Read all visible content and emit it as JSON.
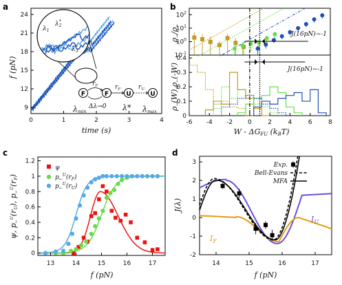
{
  "panel_labels": [
    "a",
    "b",
    "c",
    "d"
  ],
  "colors": {
    "blue_dark": "#1f4fb5",
    "blue_light": "#56a8e8",
    "green": "#66dd44",
    "olive": "#c09a22",
    "red": "#ee1111",
    "purple": "#6a4fe0",
    "orange": "#e89a10",
    "black": "#000000"
  },
  "panel_a": {
    "ylabel": "f (pN)",
    "xlabel": "time (s)",
    "inset_labels": {
      "l1": "λ",
      "l1s": "1",
      "l2": "λ",
      "l2s": "2",
      "l2sup": "*",
      "l3": "λ",
      "l3s": "3",
      "l3sup": "*"
    },
    "scheme": {
      "F": "F",
      "U": "U",
      "rF": "r",
      "rF_sub": "F",
      "rF2": "r",
      "rF2_sub": "F",
      "rU": "r",
      "rU_sub": "U",
      "delta": "Δλ→0",
      "lmin": "λ",
      "lmin_sub": "min",
      "lstar": "λ*",
      "lmax": "λ",
      "lmax_sub": "max"
    }
  },
  "panel_b": {
    "ylabel_top_parts": [
      "ρ",
      "→",
      "/ρ",
      "←"
    ],
    "ylabel_bot_parts": [
      "ρ",
      "→",
      "(W),ρ",
      "←",
      "(-W)"
    ],
    "xlabel": "W - ΔG",
    "xlabel_sub": "FU",
    "xlabel_unit": " (k",
    "xlabel_unit_sub": "B",
    "xlabel_unit_end": "T)",
    "ann_top": "J(16pN)~-1",
    "ann_bot": "J(16pN)~-1"
  },
  "panel_c": {
    "ylabel_parts": {
      "psi": "ψ",
      "p1": ", p",
      "p1_sub": "←",
      "p1_sup": "U",
      "r1": "(r",
      "r1_sub": "U",
      "r1_end": "), p",
      "p2_sub": "←",
      "p2_sup": "U",
      "r2": "(r",
      "r2_sub": "F",
      "r2_end": ")"
    },
    "xlabel": "f (pN)",
    "legend": [
      {
        "sym": "ψ",
        "sub": "",
        "sup": "",
        "arg": "",
        "arg_sub": ""
      },
      {
        "sym": "p",
        "sub": "←",
        "sup": "U",
        "arg": "(r",
        "arg_sub": "F"
      },
      {
        "sym": "p",
        "sub": "←",
        "sup": "U",
        "arg": "(r",
        "arg_sub": "U"
      }
    ]
  },
  "panel_d": {
    "ylabel": "J(λ)",
    "xlabel": "f (pN)",
    "legend": [
      "Exp.",
      "Bell-Evans",
      "MFA"
    ],
    "label_IU": "I",
    "label_IU_sub": "U",
    "label_IF": "I",
    "label_IF_sub": "F"
  },
  "chart_data": [
    {
      "id": "a",
      "type": "line",
      "title": "",
      "xlabel": "time (s)",
      "ylabel": "f (pN)",
      "xlim": [
        0,
        4
      ],
      "ylim": [
        8,
        25
      ],
      "xticks": [
        0,
        1,
        2,
        3,
        4
      ],
      "yticks": [
        9,
        12,
        15,
        18,
        21,
        24
      ],
      "series": [
        {
          "color": "blue_light",
          "t_start": 0.0,
          "t_end": 2.5,
          "f_start": 8.6,
          "f_end": 24.6,
          "rips": [
            [
              1.55,
              -0.9
            ],
            [
              1.72,
              -0.8
            ]
          ]
        },
        {
          "color": "blue_light",
          "t_start": 0.0,
          "t_end": 2.4,
          "f_start": 8.6,
          "f_end": 24.6,
          "rips": [
            [
              1.5,
              -1.0
            ]
          ]
        },
        {
          "color": "blue_dark",
          "t_start": 0.05,
          "t_end": 2.55,
          "f_start": 8.6,
          "f_end": 24.6,
          "rips": [
            [
              1.6,
              -0.9
            ],
            [
              1.8,
              -1.0
            ]
          ]
        },
        {
          "color": "blue_dark",
          "t_start": 0.0,
          "t_end": 2.45,
          "f_start": 8.6,
          "f_end": 24.6,
          "rips": [
            [
              1.52,
              -0.8
            ],
            [
              1.85,
              -0.9
            ]
          ]
        }
      ]
    },
    {
      "id": "b_top",
      "type": "scatter",
      "title": "",
      "xlabel": "",
      "ylabel": "ρ→/ρ←",
      "y_scale": "log",
      "xlim": [
        -6,
        8
      ],
      "ylim": [
        0.1,
        300
      ],
      "ytick_labels": [
        "10^-1",
        "10^0",
        "10^1",
        "10^2"
      ],
      "series": [
        {
          "color": "olive",
          "x": [
            -5.5,
            -4.7,
            -3.9,
            -3.0,
            -2.2,
            -1.4,
            -0.6
          ],
          "y": [
            2.0,
            1.5,
            0.95,
            0.55,
            1.8,
            0.8,
            0.4
          ],
          "err": [
            3,
            2,
            1.5,
            0.5,
            2,
            1,
            0.5
          ]
        },
        {
          "color": "green",
          "x": [
            -1.5,
            -0.7,
            0.1,
            0.9,
            1.7,
            2.5
          ],
          "y": [
            0.3,
            0.5,
            0.7,
            0.85,
            1.8,
            3.5
          ],
          "err": [
            0.4,
            0.4,
            0.5,
            0.5,
            1,
            2
          ]
        },
        {
          "color": "blue_dark",
          "x": [
            0.8,
            1.6,
            2.4,
            3.2,
            4.0,
            4.8,
            5.6,
            6.4,
            7.2
          ],
          "y": [
            0.3,
            0.6,
            1.3,
            2.5,
            5,
            10,
            20,
            45,
            90
          ],
          "err": [
            0.2,
            0.3,
            0.5,
            1,
            2,
            4,
            8,
            20,
            40
          ]
        }
      ],
      "guides": [
        {
          "color": "olive",
          "slope": 1
        },
        {
          "color": "green",
          "slope": 1
        },
        {
          "color": "blue_dark",
          "slope": 1
        }
      ],
      "vlines": [
        0,
        1
      ]
    },
    {
      "id": "b_bottom",
      "type": "line",
      "title": "",
      "xlabel": "W - ΔG_FU (k_B T)",
      "ylabel": "ρ→(W), ρ←(-W)",
      "xlim": [
        -6,
        8
      ],
      "ylim": [
        0,
        0.42
      ],
      "xticks": [
        -6,
        -4,
        -2,
        0,
        2,
        4,
        6,
        8
      ],
      "yticks": [
        0,
        0.1,
        0.2,
        0.3,
        0.4
      ],
      "step_series": [
        {
          "color": "olive",
          "dotted": true,
          "edges": [
            -6.0,
            -5.2,
            -4.4,
            -3.6,
            -2.8,
            -2.0,
            -1.2,
            -0.4,
            0.4
          ],
          "values": [
            0.35,
            0.3,
            0.18,
            0.08,
            0.1,
            0.06,
            0.05,
            0.0
          ]
        },
        {
          "color": "olive",
          "dotted": false,
          "edges": [
            -4.4,
            -3.6,
            -2.8,
            -2.0,
            -1.2,
            -0.4,
            0.4,
            1.2,
            2.0
          ],
          "values": [
            0.04,
            0.1,
            0.08,
            0.3,
            0.18,
            0.12,
            0.05,
            0.0
          ]
        },
        {
          "color": "green",
          "dotted": true,
          "edges": [
            -3.6,
            -2.8,
            -2.0,
            -1.2,
            -0.4,
            0.4,
            1.2,
            2.0,
            2.8
          ],
          "values": [
            0.05,
            0.2,
            0.12,
            0.18,
            0.14,
            0.08,
            0.06,
            0.02
          ]
        },
        {
          "color": "green",
          "dotted": false,
          "edges": [
            -1.2,
            -0.4,
            0.4,
            1.2,
            2.0,
            2.8,
            3.6,
            4.4,
            5.2
          ],
          "values": [
            0.02,
            0.08,
            0.12,
            0.14,
            0.2,
            0.16,
            0.06,
            0.02
          ]
        },
        {
          "color": "blue_dark",
          "dotted": true,
          "edges": [
            -2.8,
            -2.0,
            -1.2,
            -0.4,
            0.4,
            1.2,
            2.0,
            2.8,
            3.6
          ],
          "values": [
            0.06,
            0.08,
            0.12,
            0.14,
            0.12,
            0.08,
            0.05,
            0.02
          ]
        },
        {
          "color": "blue_dark",
          "dotted": false,
          "edges": [
            0.4,
            1.2,
            2.0,
            2.8,
            3.6,
            4.4,
            5.2,
            6.0,
            6.8,
            7.6
          ],
          "values": [
            0.06,
            0.1,
            0.08,
            0.12,
            0.14,
            0.16,
            0.1,
            0.18,
            0.02
          ]
        }
      ],
      "vlines": [
        0,
        1
      ]
    },
    {
      "id": "c",
      "type": "scatter",
      "title": "",
      "xlabel": "f (pN)",
      "ylabel": "ψ, p←U(rU), p←U(rF)",
      "xlim": [
        12.5,
        17.5
      ],
      "ylim": [
        -0.03,
        1.25
      ],
      "xticks": [
        13,
        14,
        15,
        16,
        17
      ],
      "yticks": [
        0,
        0.2,
        0.4,
        0.6,
        0.8,
        1.0,
        1.2
      ],
      "series": [
        {
          "name": "ψ",
          "color": "red",
          "marker": "square",
          "x": [
            13.9,
            14.1,
            14.3,
            14.45,
            14.6,
            14.75,
            14.9,
            15.05,
            15.2,
            15.4,
            15.55,
            15.75,
            15.95,
            16.15,
            16.4,
            16.7,
            17.0,
            17.2
          ],
          "y": [
            0.0,
            0.08,
            0.2,
            0.15,
            0.48,
            0.52,
            0.7,
            0.87,
            0.8,
            0.55,
            0.46,
            0.42,
            0.5,
            0.4,
            0.2,
            0.14,
            0.04,
            0.05
          ],
          "fit": {
            "mu": 14.95,
            "amp": 0.8,
            "sigma_left": 0.38,
            "sigma_right": 0.7
          }
        },
        {
          "name": "p←U(rF)",
          "color": "green",
          "marker": "circle",
          "x": [
            12.8,
            13.2,
            13.5,
            13.8,
            14.0,
            14.2,
            14.4,
            14.6,
            14.75,
            14.9,
            15.05,
            15.2,
            15.35,
            15.5,
            15.65,
            15.8,
            16.0,
            16.2,
            16.4,
            16.6,
            16.8,
            17.0,
            17.2
          ],
          "y": [
            0.0,
            0.0,
            0.0,
            0.03,
            0.05,
            0.1,
            0.15,
            0.25,
            0.35,
            0.45,
            0.55,
            0.72,
            0.78,
            0.82,
            0.9,
            0.95,
            0.98,
            1.0,
            1.0,
            1.0,
            1.0,
            1.0,
            1.0
          ],
          "fit": {
            "x0": 15.0,
            "k": 3.6
          }
        },
        {
          "name": "p←U(rU)",
          "color": "blue_light",
          "marker": "circle",
          "x": [
            12.8,
            13.2,
            13.5,
            13.7,
            13.85,
            14.0,
            14.15,
            14.3,
            14.45,
            14.6,
            14.75,
            14.9,
            15.05,
            15.2,
            15.4,
            15.6,
            15.8,
            16.0,
            16.2,
            16.4,
            16.6,
            16.8,
            17.0,
            17.2
          ],
          "y": [
            0.0,
            0.02,
            0.03,
            0.12,
            0.25,
            0.45,
            0.62,
            0.75,
            0.85,
            0.92,
            0.96,
            0.98,
            1.0,
            1.0,
            1.0,
            1.0,
            1.0,
            1.0,
            1.0,
            1.0,
            1.0,
            1.0,
            1.0,
            1.0
          ],
          "fit": {
            "x0": 14.0,
            "k": 4.6
          }
        }
      ],
      "legend_position": "top-left"
    },
    {
      "id": "d",
      "type": "line",
      "title": "",
      "xlabel": "f (pN)",
      "ylabel": "J(λ)",
      "xlim": [
        13.5,
        17.5
      ],
      "ylim": [
        -2,
        3.3
      ],
      "xticks": [
        14,
        15,
        16,
        17
      ],
      "yticks": [
        -2,
        -1,
        0,
        1,
        2,
        3
      ],
      "exp_points": {
        "x": [
          14.2,
          14.7,
          15.2,
          15.5,
          15.7
        ],
        "y": [
          1.7,
          1.3,
          -0.6,
          -0.4,
          -0.95
        ],
        "err": [
          0.15,
          0.25,
          0.3,
          0.2,
          0.3
        ]
      },
      "legend_position": "top-right"
    }
  ]
}
